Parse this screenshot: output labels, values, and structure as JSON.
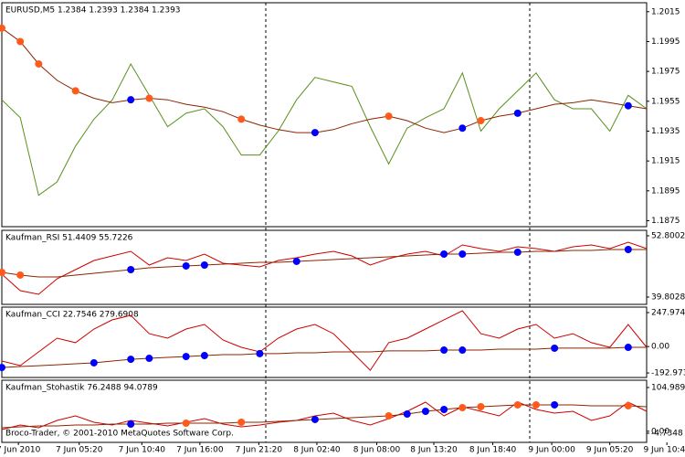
{
  "chart_data": [
    {
      "type": "line",
      "title": "EURUSD,M5  1.2384 1.2393 1.2384 1.2393",
      "xlim": [
        0,
        70
      ],
      "ylim": [
        1.1871,
        1.2021
      ],
      "yticks": [
        1.2015,
        1.1995,
        1.1975,
        1.1955,
        1.1935,
        1.1915,
        1.1895,
        1.1875
      ],
      "x": [
        0,
        2,
        4,
        6,
        8,
        10,
        12,
        14,
        16,
        18,
        20,
        22,
        24,
        26,
        28,
        30,
        32,
        34,
        36,
        38,
        40,
        42,
        44,
        46,
        48,
        50,
        52,
        54,
        56,
        58,
        60,
        62,
        64,
        66,
        68,
        70
      ],
      "series": [
        {
          "color": "#5a8f1e",
          "values": [
            1.1956,
            1.1944,
            1.1892,
            1.1901,
            1.1925,
            1.1943,
            1.1956,
            1.198,
            1.1959,
            1.1938,
            1.1947,
            1.195,
            1.1938,
            1.1919,
            1.1919,
            1.1935,
            1.1956,
            1.1971,
            1.1968,
            1.1965,
            1.1938,
            1.1913,
            1.1937,
            1.1944,
            1.195,
            1.1974,
            1.1935,
            1.195,
            1.1962,
            1.1974,
            1.1956,
            1.195,
            1.195,
            1.1935,
            1.1959,
            1.195
          ]
        },
        {
          "color": "#8b2500",
          "values": [
            1.2004,
            1.1995,
            1.198,
            1.1969,
            1.1962,
            1.1957,
            1.1954,
            1.1956,
            1.1957,
            1.1956,
            1.1953,
            1.1951,
            1.1948,
            1.1943,
            1.1939,
            1.1936,
            1.1934,
            1.1934,
            1.1936,
            1.194,
            1.1943,
            1.1945,
            1.1942,
            1.1937,
            1.1934,
            1.1937,
            1.1942,
            1.1945,
            1.1947,
            1.195,
            1.1953,
            1.1954,
            1.1956,
            1.1954,
            1.1952,
            1.195
          ],
          "marker_colors": [
            "#ff5a1a",
            "#ff5a1a",
            "#ff5a1a",
            null,
            "#ff5a1a",
            null,
            null,
            "#0000ff",
            "#ff5a1a",
            null,
            null,
            null,
            null,
            "#ff5a1a",
            null,
            null,
            null,
            "#0000ff",
            null,
            null,
            null,
            "#ff5a1a",
            null,
            null,
            null,
            "#0000ff",
            "#ff5a1a",
            null,
            "#0000ff",
            null,
            null,
            null,
            null,
            null,
            "#0000ff",
            null
          ]
        }
      ]
    },
    {
      "type": "line",
      "title": "Kaufman_RSI 51.4409 55.7226",
      "xlim": [
        0,
        70
      ],
      "ylim": [
        38.25,
        53.96
      ],
      "yticks": [
        52.8002,
        39.8028
      ],
      "x": [
        0,
        2,
        4,
        6,
        8,
        10,
        12,
        14,
        16,
        18,
        20,
        22,
        24,
        26,
        28,
        30,
        32,
        34,
        36,
        38,
        40,
        42,
        44,
        46,
        48,
        50,
        52,
        54,
        56,
        58,
        60,
        62,
        64,
        66,
        68,
        70
      ],
      "series": [
        {
          "color": "#cc0000",
          "values": [
            44.65,
            41.16,
            40.38,
            43.68,
            45.62,
            47.56,
            48.53,
            49.5,
            46.59,
            48.14,
            47.56,
            48.92,
            46.98,
            46.59,
            46.2,
            47.56,
            48.14,
            48.92,
            49.5,
            48.53,
            46.59,
            47.95,
            48.92,
            49.5,
            48.53,
            50.86,
            50.08,
            49.5,
            50.47,
            50.08,
            49.5,
            50.47,
            50.86,
            50.08,
            51.44,
            50.08
          ]
        },
        {
          "color": "#8b2500",
          "values": [
            45.04,
            44.46,
            44.07,
            44.07,
            44.46,
            44.85,
            45.23,
            45.62,
            46.01,
            46.2,
            46.4,
            46.59,
            46.79,
            46.98,
            47.17,
            47.17,
            47.37,
            47.56,
            47.76,
            47.95,
            48.14,
            48.34,
            48.53,
            48.73,
            48.92,
            48.92,
            49.11,
            49.31,
            49.31,
            49.5,
            49.5,
            49.7,
            49.7,
            49.89,
            49.89,
            49.89
          ],
          "marker_colors": [
            "#ff5a1a",
            "#ff5a1a",
            null,
            null,
            null,
            null,
            null,
            "#0000ff",
            null,
            null,
            "#0000ff",
            "#0000ff",
            null,
            null,
            null,
            null,
            "#0000ff",
            null,
            null,
            null,
            null,
            null,
            null,
            null,
            "#0000ff",
            "#0000ff",
            null,
            null,
            "#0000ff",
            null,
            null,
            null,
            null,
            null,
            "#0000ff",
            null
          ]
        }
      ]
    },
    {
      "type": "line",
      "title": "Kaufman_CCI 22.7546 279.6908",
      "xlim": [
        0,
        70
      ],
      "ylim": [
        -226,
        288
      ],
      "yticks": [
        247.9741,
        {
          "value": 0,
          "label": "0.00"
        },
        -192.973
      ],
      "x": [
        0,
        2,
        4,
        6,
        8,
        10,
        12,
        14,
        16,
        18,
        20,
        22,
        24,
        26,
        28,
        30,
        32,
        34,
        36,
        38,
        40,
        42,
        44,
        46,
        48,
        50,
        52,
        54,
        56,
        58,
        60,
        62,
        64,
        66,
        68,
        70
      ],
      "series": [
        {
          "color": "#cc0000",
          "values": [
            -106,
            -139,
            -39,
            61,
            28,
            128,
            195,
            228,
            94,
            61,
            128,
            161,
            48,
            -6,
            -39,
            61,
            128,
            161,
            94,
            -39,
            -173,
            28,
            61,
            128,
            195,
            261,
            94,
            61,
            128,
            161,
            61,
            94,
            28,
            -6,
            161,
            -6
          ]
        },
        {
          "color": "#8b2500",
          "values": [
            -153,
            -146,
            -140,
            -133,
            -126,
            -119,
            -106,
            -93,
            -86,
            -79,
            -73,
            -66,
            -59,
            -59,
            -52,
            -52,
            -46,
            -46,
            -39,
            -39,
            -39,
            -32,
            -32,
            -32,
            -26,
            -26,
            -26,
            -19,
            -19,
            -19,
            -12,
            -12,
            -12,
            -12,
            -6,
            -6
          ],
          "marker_colors": [
            "#0000ff",
            null,
            null,
            null,
            null,
            "#0000ff",
            null,
            "#0000ff",
            "#0000ff",
            null,
            "#0000ff",
            "#0000ff",
            null,
            null,
            "#0000ff",
            null,
            null,
            null,
            null,
            null,
            null,
            null,
            null,
            null,
            "#0000ff",
            "#0000ff",
            null,
            null,
            null,
            null,
            "#0000ff",
            null,
            null,
            null,
            "#0000ff",
            null
          ]
        }
      ]
    },
    {
      "type": "line",
      "title": "Kaufman_Stohastik 76.2488 94.0789",
      "annotation": "Broco-Trader, © 2001-2010 MetaQuotes Software Corp.",
      "xlim": [
        0,
        70
      ],
      "ylim": [
        -26.7,
        122.5
      ],
      "yticks": [
        104.9896,
        {
          "value": 0,
          "label": "0.00"
        },
        -4.7348
      ],
      "xticks": [
        {
          "value": 1.8,
          "label": "7 Jun 2010"
        },
        {
          "value": 8.4,
          "label": "7 Jun 05:20"
        },
        {
          "value": 15.2,
          "label": "7 Jun 10:40"
        },
        {
          "value": 21.5,
          "label": "7 Jun 16:00"
        },
        {
          "value": 27.9,
          "label": "7 Jun 21:20"
        },
        {
          "value": 34.2,
          "label": "8 Jun 02:40"
        },
        {
          "value": 40.7,
          "label": "8 Jun 08:00"
        },
        {
          "value": 46.9,
          "label": "8 Jun 13:20"
        },
        {
          "value": 53.3,
          "label": "8 Jun 18:40"
        },
        {
          "value": 59.7,
          "label": "9 Jun 00:00"
        },
        {
          "value": 66.0,
          "label": "9 Jun 05:20"
        },
        {
          "value": 72.2,
          "label": "9 Jun 10:40"
        }
      ],
      "x": [
        0,
        2,
        4,
        6,
        8,
        10,
        12,
        14,
        16,
        18,
        20,
        22,
        24,
        26,
        28,
        30,
        32,
        34,
        36,
        38,
        40,
        42,
        44,
        46,
        48,
        50,
        52,
        54,
        56,
        58,
        60,
        62,
        64,
        66,
        68,
        70
      ],
      "series": [
        {
          "color": "#cc0000",
          "values": [
            4.0,
            15.0,
            8.4,
            26.0,
            36.9,
            21.6,
            15.0,
            26.0,
            19.4,
            12.8,
            21.6,
            30.4,
            17.2,
            10.6,
            15.0,
            21.6,
            26.0,
            36.9,
            43.5,
            26.0,
            15.0,
            30.4,
            47.9,
            69.9,
            36.9,
            58.9,
            47.9,
            36.9,
            69.9,
            52.3,
            43.5,
            47.9,
            26.0,
            36.9,
            69.9,
            47.9
          ]
        },
        {
          "color": "#8b2500",
          "values": [
            8.4,
            10.6,
            12.8,
            12.8,
            15.0,
            15.0,
            17.2,
            17.2,
            17.2,
            19.4,
            19.4,
            19.4,
            19.4,
            21.6,
            21.6,
            23.8,
            26.0,
            28.2,
            30.4,
            32.6,
            34.8,
            36.9,
            41.3,
            47.9,
            52.3,
            56.7,
            58.9,
            61.1,
            63.3,
            63.3,
            63.3,
            63.3,
            61.1,
            61.1,
            61.1,
            58.9
          ],
          "marker_colors": [
            null,
            null,
            null,
            null,
            null,
            null,
            null,
            "#0000ff",
            null,
            null,
            "#ff5a1a",
            null,
            null,
            "#ff5a1a",
            null,
            null,
            null,
            "#0000ff",
            null,
            null,
            null,
            "#ff5a1a",
            "#0000ff",
            "#0000ff",
            "#0000ff",
            "#ff5a1a",
            "#ff5a1a",
            null,
            "#ff5a1a",
            "#ff5a1a",
            "#0000ff",
            null,
            null,
            null,
            "#ff5a1a",
            null
          ]
        }
      ]
    }
  ]
}
